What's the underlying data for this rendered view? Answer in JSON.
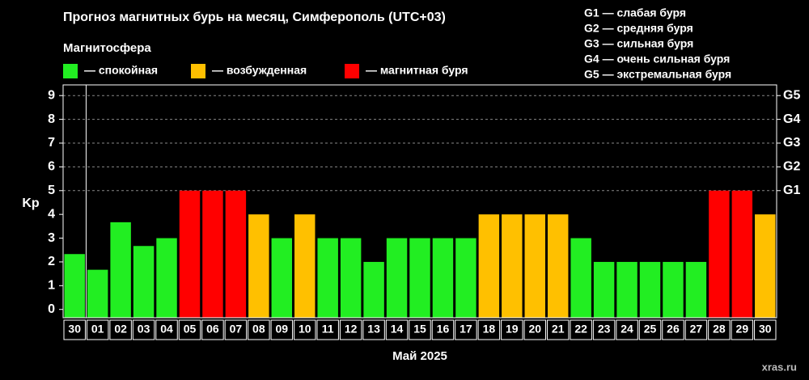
{
  "chart_data": {
    "type": "bar",
    "title": "Прогноз магнитных бурь на месяц, Симферополь (UTC+03)",
    "legend_title": "Магнитосфера",
    "legend": [
      {
        "name": "— спокойная",
        "color": "#22ee22"
      },
      {
        "name": "— возбужденная",
        "color": "#ffc000"
      },
      {
        "name": "— магнитная буря",
        "color": "#ff0000"
      }
    ],
    "storm_scale": [
      "G1 — слабая буря",
      "G2 — средняя буря",
      "G3 — сильная буря",
      "G4 — очень сильная буря",
      "G5 — экстремальная буря"
    ],
    "y_label": "Kp",
    "x_label": "Май 2025",
    "watermark": "xras.ru",
    "categories": [
      "30",
      "01",
      "02",
      "03",
      "04",
      "05",
      "06",
      "07",
      "08",
      "09",
      "10",
      "11",
      "12",
      "13",
      "14",
      "15",
      "16",
      "17",
      "18",
      "19",
      "20",
      "21",
      "22",
      "23",
      "24",
      "25",
      "26",
      "27",
      "28",
      "29",
      "30"
    ],
    "values": [
      2.33,
      1.67,
      3.67,
      2.67,
      3,
      5,
      5,
      5,
      4,
      3,
      4,
      3,
      3,
      2,
      3,
      3,
      3,
      3,
      4,
      4,
      4,
      4,
      3,
      2,
      2,
      2,
      2,
      2,
      5,
      5,
      4
    ],
    "colors": [
      "#22ee22",
      "#22ee22",
      "#22ee22",
      "#22ee22",
      "#22ee22",
      "#ff0000",
      "#ff0000",
      "#ff0000",
      "#ffc000",
      "#22ee22",
      "#ffc000",
      "#22ee22",
      "#22ee22",
      "#22ee22",
      "#22ee22",
      "#22ee22",
      "#22ee22",
      "#22ee22",
      "#ffc000",
      "#ffc000",
      "#ffc000",
      "#ffc000",
      "#22ee22",
      "#22ee22",
      "#22ee22",
      "#22ee22",
      "#22ee22",
      "#22ee22",
      "#ff0000",
      "#ff0000",
      "#ffc000"
    ],
    "ylim": [
      -0.35,
      9.45
    ],
    "yticks": [
      0,
      1,
      2,
      3,
      4,
      5,
      6,
      7,
      8,
      9
    ],
    "y2lim": [
      -0.35,
      9.45
    ],
    "y2ticks": [
      {
        "value": 5,
        "label": "G1"
      },
      {
        "value": 6,
        "label": "G2"
      },
      {
        "value": 7,
        "label": "G3"
      },
      {
        "value": 8,
        "label": "G4"
      },
      {
        "value": 9,
        "label": "G5"
      }
    ],
    "grid": true
  }
}
